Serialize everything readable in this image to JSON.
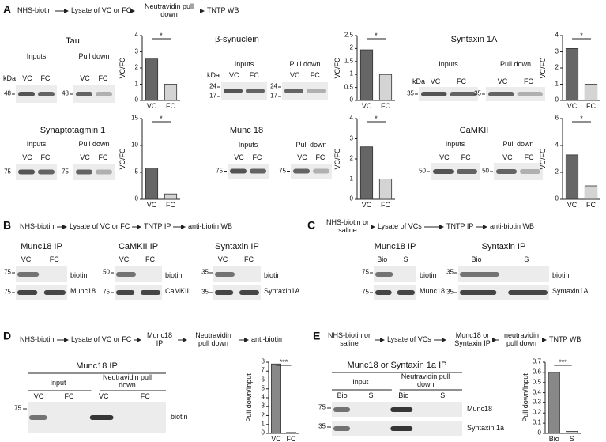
{
  "panels": {
    "A": {
      "letter": "A",
      "workflow": [
        "NHS-biotin",
        "Lysate of VC or FC",
        "Neutravidin pull down",
        "TNTP WB"
      ],
      "proteins": [
        {
          "title": "Tau",
          "inputs": "Inputs",
          "pull_down": "Pull down",
          "kda": "kDa",
          "input_lanes": [
            "VC",
            "FC"
          ],
          "pull_lanes": [
            "VC",
            "FC"
          ],
          "input_markers": [
            "48"
          ],
          "pull_markers": [
            "48"
          ]
        },
        {
          "title": "β-synuclein",
          "inputs": "Inputs",
          "pull_down": "Pull down",
          "kda": "kDa",
          "input_lanes": [
            "VC",
            "FC"
          ],
          "pull_lanes": [
            "VC",
            "FC"
          ],
          "input_markers": [
            "24",
            "17"
          ],
          "pull_markers": [
            "24",
            "17"
          ]
        },
        {
          "title": "Syntaxin 1A",
          "inputs": "Inputs",
          "pull_down": "Pull down",
          "kda": "kDa",
          "input_lanes": [
            "VC",
            "FC"
          ],
          "pull_lanes": [
            "VC",
            "FC"
          ],
          "input_markers": [
            "35"
          ],
          "pull_markers": [
            "35"
          ]
        },
        {
          "title": "Synaptotagmin 1",
          "inputs": "Inputs",
          "pull_down": "Pull down",
          "input_lanes": [
            "VC",
            "FC"
          ],
          "pull_lanes": [
            "VC",
            "FC"
          ],
          "input_markers": [
            "75"
          ],
          "pull_markers": [
            "75"
          ]
        },
        {
          "title": "Munc 18",
          "inputs": "Inputs",
          "pull_down": "Pull down",
          "input_lanes": [
            "VC",
            "FC"
          ],
          "pull_lanes": [
            "VC",
            "FC"
          ],
          "input_markers": [
            "75"
          ],
          "pull_markers": [
            "75"
          ]
        },
        {
          "title": "CaMKII",
          "inputs": "Inputs",
          "pull_down": "Pull down",
          "input_lanes": [
            "VC",
            "FC"
          ],
          "pull_lanes": [
            "VC",
            "FC"
          ],
          "input_markers": [
            "50"
          ],
          "pull_markers": [
            "50"
          ]
        }
      ]
    },
    "B": {
      "letter": "B",
      "workflow": [
        "NHS-biotin",
        "Lysate of VC or FC",
        "TNTP IP",
        "anti-biotin WB"
      ],
      "blots": [
        {
          "title": "Munc18 IP",
          "lanes": [
            "VC",
            "FC"
          ],
          "markers": [
            "75",
            "75"
          ],
          "labels": [
            "biotin",
            "Munc18"
          ]
        },
        {
          "title": "CaMKII  IP",
          "lanes": [
            "VC",
            "FC"
          ],
          "markers": [
            "50",
            "75"
          ],
          "labels": [
            "biotin",
            "CaMKII"
          ]
        },
        {
          "title": "Syntaxin  IP",
          "lanes": [
            "VC",
            "FC"
          ],
          "markers": [
            "35",
            "35"
          ],
          "labels": [
            "biotin",
            "Syntaxin1A"
          ]
        }
      ]
    },
    "C": {
      "letter": "C",
      "workflow": [
        "NHS-biotin or saline",
        "Lysate of VCs",
        "TNTP IP",
        "anti-biotin WB"
      ],
      "blots": [
        {
          "title": "Munc18 IP",
          "lanes": [
            "Bio",
            "S"
          ],
          "markers": [
            "75",
            "75"
          ],
          "labels": [
            "biotin",
            "Munc18"
          ]
        },
        {
          "title": "Syntaxin IP",
          "lanes": [
            "Bio",
            "S"
          ],
          "markers": [
            "35",
            "35"
          ],
          "labels": [
            "biotin",
            "Syntaxin1A"
          ]
        }
      ]
    },
    "D": {
      "letter": "D",
      "workflow": [
        "NHS-biotin",
        "Lysate of VC or FC",
        "Munc18 IP",
        "Neutravidin pull down",
        "anti-biotin"
      ],
      "blot": {
        "title": "Munc18 IP",
        "input": "Input",
        "pull_down": "Neutravidin pull down",
        "lanes": [
          "VC",
          "FC",
          "VC",
          "FC"
        ],
        "markers": [
          "75"
        ],
        "labels": [
          "biotin"
        ]
      }
    },
    "E": {
      "letter": "E",
      "workflow": [
        "NHS-biotin or saline",
        "Lysate of VCs",
        "Munc18 or Syntaxin IP",
        "neutravidin pull down",
        "TNTP WB"
      ],
      "blot": {
        "title": "Munc18 or Syntaxin 1a IP",
        "input": "Input",
        "pull_down": "Neutravidin pull down",
        "lanes": [
          "Bio",
          "S",
          "Bio",
          "S"
        ],
        "markers": [
          "75",
          "35"
        ],
        "labels": [
          "Munc18",
          "Syntaxin 1a"
        ]
      }
    }
  },
  "chart_data": [
    {
      "type": "bar",
      "ylabel": "VC/FC",
      "categories": [
        "VC",
        "FC"
      ],
      "values": [
        2.6,
        1.0
      ],
      "colors": [
        "#666666",
        "#d4d4d4"
      ],
      "ylim": [
        0,
        4
      ],
      "yticks": [
        0,
        1,
        2,
        3,
        4
      ],
      "significance": "*"
    },
    {
      "type": "bar",
      "ylabel": "VC/FC",
      "categories": [
        "VC",
        "FC"
      ],
      "values": [
        1.95,
        1.0
      ],
      "colors": [
        "#666666",
        "#d4d4d4"
      ],
      "ylim": [
        0,
        2.5
      ],
      "yticks": [
        0,
        0.5,
        1,
        1.5,
        2,
        2.5
      ],
      "significance": "*"
    },
    {
      "type": "bar",
      "ylabel": "VC/FC",
      "categories": [
        "VC",
        "FC"
      ],
      "values": [
        3.2,
        1.0
      ],
      "colors": [
        "#666666",
        "#d4d4d4"
      ],
      "ylim": [
        0,
        4
      ],
      "yticks": [
        0,
        1,
        2,
        3,
        4
      ],
      "significance": "*"
    },
    {
      "type": "bar",
      "ylabel": "VC/FC",
      "categories": [
        "VC",
        "FC"
      ],
      "values": [
        5.8,
        1.0
      ],
      "colors": [
        "#666666",
        "#d4d4d4"
      ],
      "ylim": [
        0,
        15
      ],
      "yticks": [
        0,
        5,
        10,
        15
      ],
      "significance": "*"
    },
    {
      "type": "bar",
      "ylabel": "VC/FC",
      "categories": [
        "VC",
        "FC"
      ],
      "values": [
        2.6,
        1.0
      ],
      "colors": [
        "#666666",
        "#d4d4d4"
      ],
      "ylim": [
        0,
        4
      ],
      "yticks": [
        0,
        1,
        2,
        3,
        4
      ],
      "significance": "*"
    },
    {
      "type": "bar",
      "ylabel": "VC/FC",
      "categories": [
        "VC",
        "FC"
      ],
      "values": [
        3.3,
        1.0
      ],
      "colors": [
        "#666666",
        "#d4d4d4"
      ],
      "ylim": [
        0,
        6
      ],
      "yticks": [
        0,
        2,
        4,
        6
      ],
      "significance": "*"
    },
    {
      "type": "bar",
      "ylabel": "Pull down/Input",
      "categories": [
        "VC",
        "FC"
      ],
      "values": [
        7.8,
        0.1
      ],
      "colors": [
        "#888888",
        "#d4d4d4"
      ],
      "ylim": [
        0,
        8
      ],
      "yticks": [
        0,
        1,
        2,
        3,
        4,
        5,
        6,
        7,
        8
      ],
      "significance": "***"
    },
    {
      "type": "bar",
      "ylabel": "Pull down/Input",
      "categories": [
        "Bio",
        "S"
      ],
      "values": [
        0.6,
        0.02
      ],
      "colors": [
        "#888888",
        "#d4d4d4"
      ],
      "ylim": [
        0,
        0.7
      ],
      "yticks": [
        0,
        0.1,
        0.2,
        0.3,
        0.4,
        0.5,
        0.6,
        0.7
      ],
      "significance": "***"
    }
  ]
}
